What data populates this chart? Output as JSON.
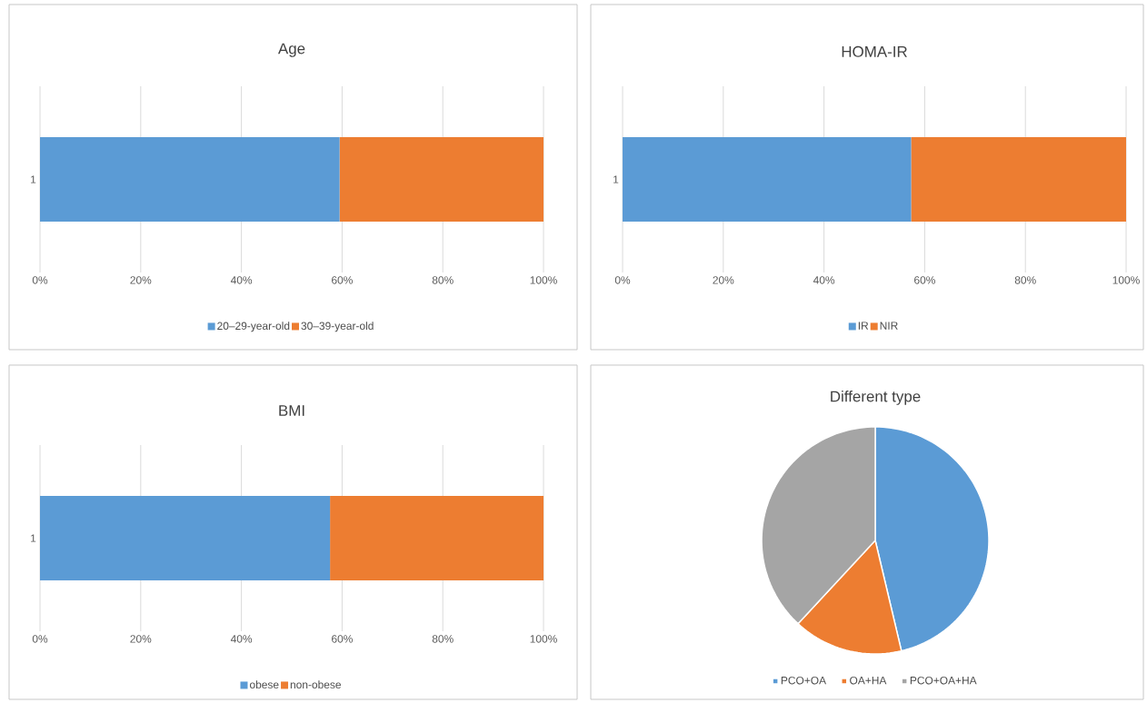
{
  "chart_data": [
    {
      "type": "bar",
      "title": "Age",
      "orientation": "horizontal",
      "stacked": true,
      "categories": [
        "1"
      ],
      "series": [
        {
          "name": "20–29-year-old",
          "color": "#5b9bd5",
          "values": [
            59.5
          ]
        },
        {
          "name": "30–39-year-old",
          "color": "#ed7d31",
          "values": [
            40.5
          ]
        }
      ],
      "xlim": [
        0,
        100
      ],
      "xticks": [
        {
          "value": 0,
          "label": "0%"
        },
        {
          "value": 20,
          "label": "20%"
        },
        {
          "value": 40,
          "label": "40%"
        },
        {
          "value": 60,
          "label": "60%"
        },
        {
          "value": 80,
          "label": "80%"
        },
        {
          "value": 100,
          "label": "100%"
        }
      ],
      "grid": "x",
      "legend": "bottom"
    },
    {
      "type": "bar",
      "title": "HOMA-IR",
      "orientation": "horizontal",
      "stacked": true,
      "categories": [
        "1"
      ],
      "series": [
        {
          "name": "IR",
          "color": "#5b9bd5",
          "values": [
            57.3
          ]
        },
        {
          "name": "NIR",
          "color": "#ed7d31",
          "values": [
            42.7
          ]
        }
      ],
      "xlim": [
        0,
        100
      ],
      "xticks": [
        {
          "value": 0,
          "label": "0%"
        },
        {
          "value": 20,
          "label": "20%"
        },
        {
          "value": 40,
          "label": "40%"
        },
        {
          "value": 60,
          "label": "60%"
        },
        {
          "value": 80,
          "label": "80%"
        },
        {
          "value": 100,
          "label": "100%"
        }
      ],
      "grid": "x",
      "legend": "bottom"
    },
    {
      "type": "bar",
      "title": "BMI",
      "orientation": "horizontal",
      "stacked": true,
      "categories": [
        "1"
      ],
      "series": [
        {
          "name": "obese",
          "color": "#5b9bd5",
          "values": [
            57.6
          ]
        },
        {
          "name": "non-obese",
          "color": "#ed7d31",
          "values": [
            42.4
          ]
        }
      ],
      "xlim": [
        0,
        100
      ],
      "xticks": [
        {
          "value": 0,
          "label": "0%"
        },
        {
          "value": 20,
          "label": "20%"
        },
        {
          "value": 40,
          "label": "40%"
        },
        {
          "value": 60,
          "label": "60%"
        },
        {
          "value": 80,
          "label": "80%"
        },
        {
          "value": 100,
          "label": "100%"
        }
      ],
      "grid": "x",
      "legend": "bottom"
    },
    {
      "type": "pie",
      "title": "Different type",
      "categories": [
        "PCO+OA",
        "OA+HA",
        "PCO+OA+HA"
      ],
      "values": [
        46.3,
        15.6,
        38.1
      ],
      "colors": [
        "#5b9bd5",
        "#ed7d31",
        "#a5a5a5"
      ],
      "legend": "bottom"
    }
  ]
}
